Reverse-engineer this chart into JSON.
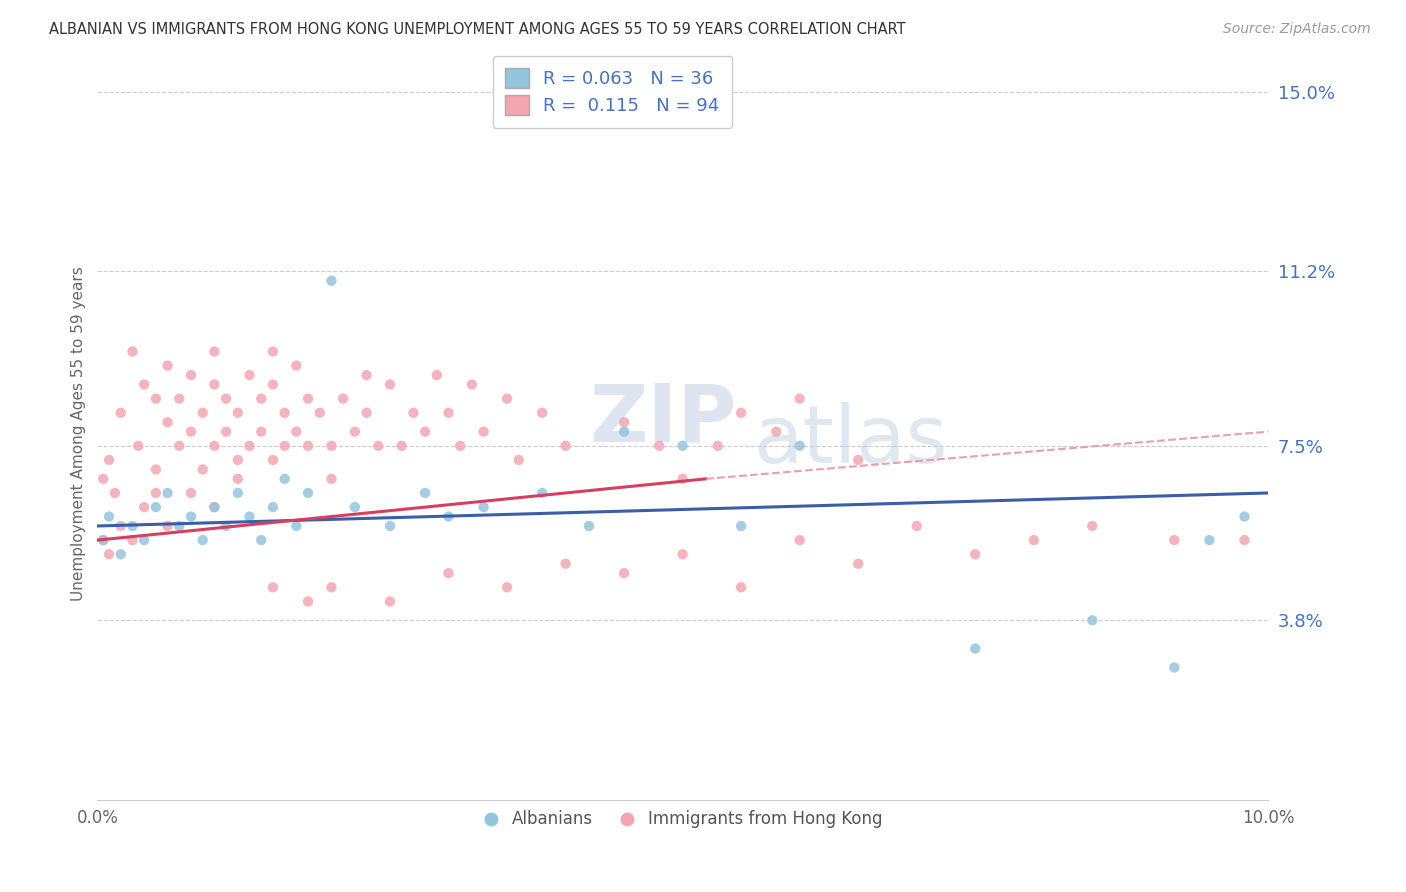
{
  "title": "ALBANIAN VS IMMIGRANTS FROM HONG KONG UNEMPLOYMENT AMONG AGES 55 TO 59 YEARS CORRELATION CHART",
  "source": "Source: ZipAtlas.com",
  "ylabel": "Unemployment Among Ages 55 to 59 years",
  "right_yticks": [
    3.8,
    7.5,
    11.2,
    15.0
  ],
  "xmin": 0.0,
  "xmax": 10.0,
  "ymin": 0.0,
  "ymax": 15.5,
  "series_albanian": {
    "label": "Albanians",
    "color": "#92c5de",
    "R": 0.063,
    "N": 36,
    "x": [
      0.05,
      0.1,
      0.2,
      0.3,
      0.4,
      0.5,
      0.6,
      0.7,
      0.8,
      0.9,
      1.0,
      1.1,
      1.2,
      1.3,
      1.4,
      1.5,
      1.6,
      1.7,
      1.8,
      2.0,
      2.2,
      2.5,
      2.8,
      3.0,
      3.3,
      3.8,
      4.2,
      4.5,
      5.0,
      5.5,
      6.0,
      7.5,
      8.5,
      9.2,
      9.5,
      9.8
    ],
    "y": [
      5.5,
      6.0,
      5.2,
      5.8,
      5.5,
      6.2,
      6.5,
      5.8,
      6.0,
      5.5,
      6.2,
      5.8,
      6.5,
      6.0,
      5.5,
      6.2,
      6.8,
      5.8,
      6.5,
      11.0,
      6.2,
      5.8,
      6.5,
      6.0,
      6.2,
      6.5,
      5.8,
      7.8,
      7.5,
      5.8,
      7.5,
      3.2,
      3.8,
      2.8,
      5.5,
      6.0
    ]
  },
  "series_hk": {
    "label": "Immigrants from Hong Kong",
    "color": "#f4a6b0",
    "R": 0.115,
    "N": 94,
    "x": [
      0.05,
      0.05,
      0.1,
      0.1,
      0.15,
      0.2,
      0.2,
      0.3,
      0.3,
      0.35,
      0.4,
      0.4,
      0.5,
      0.5,
      0.5,
      0.6,
      0.6,
      0.6,
      0.7,
      0.7,
      0.8,
      0.8,
      0.8,
      0.9,
      0.9,
      1.0,
      1.0,
      1.0,
      1.0,
      1.1,
      1.1,
      1.2,
      1.2,
      1.2,
      1.3,
      1.3,
      1.4,
      1.4,
      1.5,
      1.5,
      1.5,
      1.6,
      1.6,
      1.7,
      1.7,
      1.8,
      1.8,
      1.9,
      2.0,
      2.0,
      2.1,
      2.2,
      2.3,
      2.3,
      2.4,
      2.5,
      2.6,
      2.7,
      2.8,
      2.9,
      3.0,
      3.1,
      3.2,
      3.3,
      3.5,
      3.6,
      3.8,
      4.0,
      4.5,
      4.8,
      5.0,
      5.3,
      5.5,
      5.8,
      6.0,
      6.5,
      1.5,
      1.8,
      2.0,
      2.5,
      3.0,
      3.5,
      4.0,
      4.5,
      5.0,
      5.5,
      6.0,
      6.5,
      7.0,
      7.5,
      8.0,
      8.5,
      9.2,
      9.8
    ],
    "y": [
      5.5,
      6.8,
      5.2,
      7.2,
      6.5,
      5.8,
      8.2,
      5.5,
      9.5,
      7.5,
      8.8,
      6.2,
      8.5,
      7.0,
      6.5,
      5.8,
      8.0,
      9.2,
      7.5,
      8.5,
      7.8,
      9.0,
      6.5,
      8.2,
      7.0,
      7.5,
      6.2,
      8.8,
      9.5,
      7.8,
      8.5,
      7.2,
      8.2,
      6.8,
      7.5,
      9.0,
      7.8,
      8.5,
      7.2,
      8.8,
      9.5,
      7.5,
      8.2,
      7.8,
      9.2,
      7.5,
      8.5,
      8.2,
      6.8,
      7.5,
      8.5,
      7.8,
      8.2,
      9.0,
      7.5,
      8.8,
      7.5,
      8.2,
      7.8,
      9.0,
      8.2,
      7.5,
      8.8,
      7.8,
      8.5,
      7.2,
      8.2,
      7.5,
      8.0,
      7.5,
      6.8,
      7.5,
      8.2,
      7.8,
      8.5,
      7.2,
      4.5,
      4.2,
      4.5,
      4.2,
      4.8,
      4.5,
      5.0,
      4.8,
      5.2,
      4.5,
      5.5,
      5.0,
      5.8,
      5.2,
      5.5,
      5.8,
      5.5,
      5.5
    ]
  },
  "trend_albanian": {
    "color": "#3a5fa8",
    "x_start": 0.0,
    "x_end": 10.0,
    "y_start": 5.8,
    "y_end": 6.5
  },
  "trend_hk_solid": {
    "color": "#d64060",
    "x_start": 0.0,
    "x_end": 5.2,
    "y_start": 5.5,
    "y_end": 6.8
  },
  "trend_hk_dashed": {
    "color": "#e8a0a8",
    "x_start": 5.2,
    "x_end": 10.0,
    "y_start": 6.8,
    "y_end": 7.8
  },
  "watermark_zip": "ZIP",
  "watermark_atlas": "atlas",
  "background_color": "#ffffff",
  "grid_color": "#cccccc",
  "title_color": "#333333",
  "label_color": "#4472c4",
  "right_axis_color": "#4472c4"
}
